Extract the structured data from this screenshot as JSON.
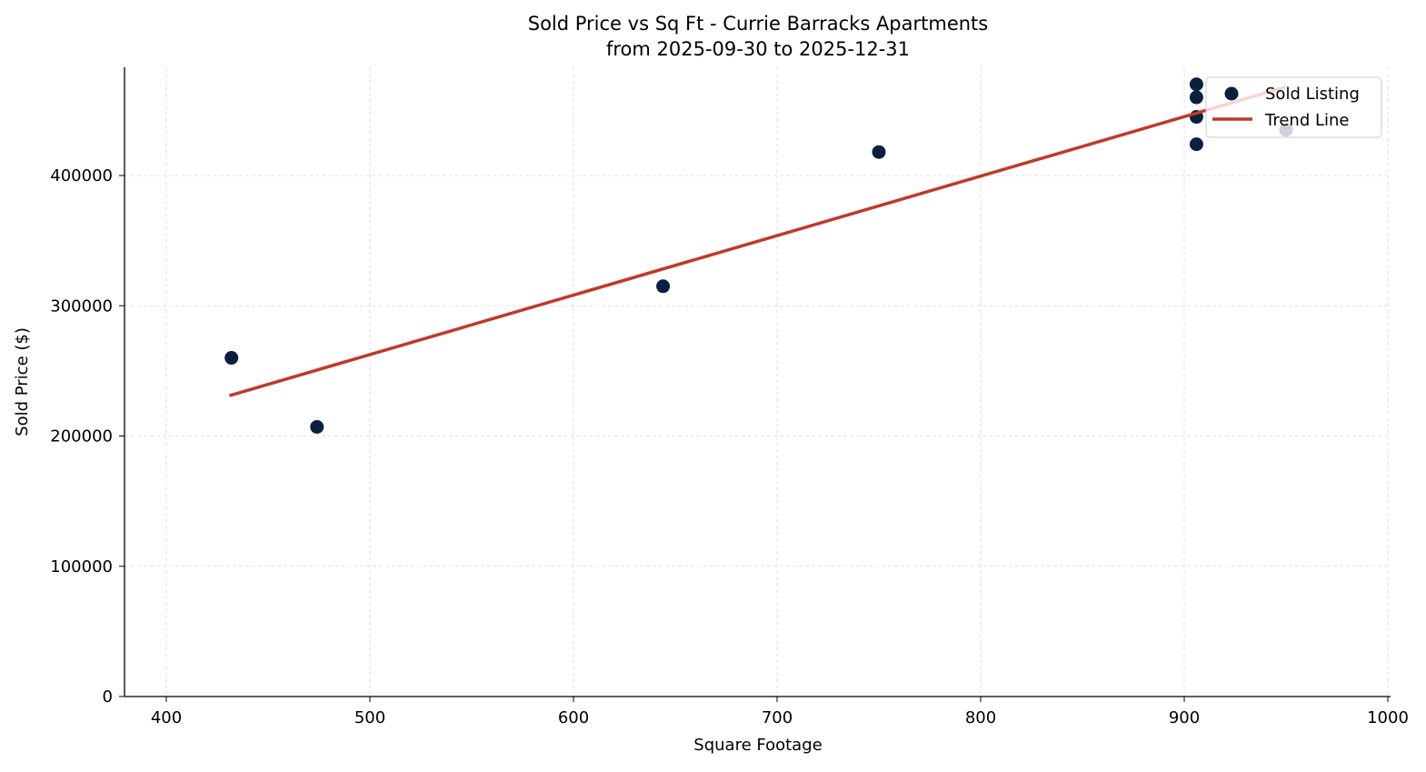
{
  "chart_data": {
    "type": "scatter",
    "title": "Sold Price vs Sq Ft - Currie Barracks Apartments",
    "subtitle": "from 2025-09-30 to 2025-12-31",
    "xlabel": "Square Footage",
    "ylabel": "Sold Price ($)",
    "xlim": [
      380,
      1000
    ],
    "ylim": [
      0,
      482000
    ],
    "xticks": [
      400,
      500,
      600,
      700,
      800,
      900,
      1000
    ],
    "yticks": [
      0,
      100000,
      200000,
      300000,
      400000
    ],
    "grid": true,
    "legend": "top-right",
    "series": [
      {
        "name": "Sold Listing",
        "kind": "scatter",
        "color": "#0b1f3f",
        "points": [
          [
            432,
            260000
          ],
          [
            474,
            207000
          ],
          [
            644,
            315000
          ],
          [
            750,
            418000
          ],
          [
            906,
            470000
          ],
          [
            906,
            460000
          ],
          [
            906,
            445000
          ],
          [
            906,
            424000
          ],
          [
            950,
            435000
          ]
        ]
      },
      {
        "name": "Trend Line",
        "kind": "line",
        "color": "#c0392b",
        "points": [
          [
            431,
            231000
          ],
          [
            950,
            468000
          ]
        ]
      }
    ]
  }
}
